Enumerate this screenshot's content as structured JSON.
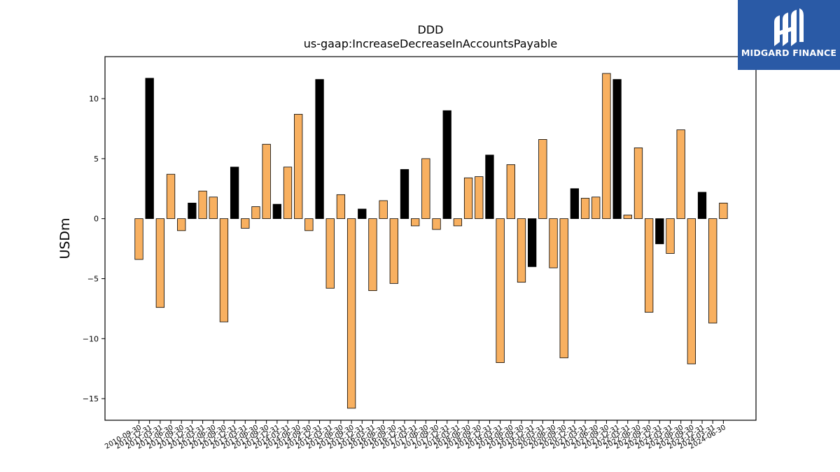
{
  "title": "DDD",
  "subtitle": "us-gaap:IncreaseDecreaseInAccountsPayable",
  "logo": {
    "text": "MIDGARD FINANCE",
    "background": "#2a5aa6"
  },
  "colors": {
    "positive_bar": "#000000",
    "negative_bar": "#f8b060",
    "bar_edge": "#000000"
  },
  "chart_data": {
    "type": "bar",
    "title": "DDD",
    "subtitle": "us-gaap:IncreaseDecreaseInAccountsPayable",
    "xlabel": "",
    "ylabel": "USDm",
    "ylim": [
      -16.8,
      13.5
    ],
    "yticks": [
      -15,
      -10,
      -5,
      0,
      5,
      10
    ],
    "ytick_labels": [
      "−15",
      "−10",
      "−5",
      "0",
      "5",
      "10"
    ],
    "grid": false,
    "legend": "none",
    "categories": [
      "2010-09-30",
      "2010-12-31",
      "2011-03-31",
      "2011-06-30",
      "2011-09-30",
      "2011-12-31",
      "2012-03-31",
      "2012-06-30",
      "2012-09-30",
      "2012-12-31",
      "2013-03-31",
      "2013-06-30",
      "2013-09-30",
      "2013-12-31",
      "2014-03-31",
      "2014-06-30",
      "2014-09-30",
      "2014-12-31",
      "2015-03-31",
      "2015-06-30",
      "2015-09-30",
      "2015-12-31",
      "2016-03-31",
      "2016-06-30",
      "2016-09-30",
      "2016-12-31",
      "2017-03-31",
      "2017-06-30",
      "2017-09-30",
      "2017-12-31",
      "2018-03-31",
      "2018-06-30",
      "2018-09-30",
      "2018-12-31",
      "2019-03-31",
      "2019-06-30",
      "2019-09-30",
      "2019-12-31",
      "2020-03-31",
      "2020-06-30",
      "2020-09-30",
      "2020-12-31",
      "2021-03-31",
      "2021-06-30",
      "2021-09-30",
      "2021-12-31",
      "2022-03-31",
      "2022-06-30",
      "2022-09-30",
      "2022-12-31",
      "2023-03-31",
      "2023-06-30",
      "2023-09-30",
      "2023-12-31",
      "2024-03-31",
      "2024-06-30"
    ],
    "values": [
      -3.4,
      11.7,
      -7.4,
      3.7,
      -1.0,
      1.3,
      2.3,
      1.8,
      -8.6,
      4.3,
      -0.8,
      1.0,
      6.2,
      1.2,
      4.3,
      8.7,
      -1.0,
      11.6,
      -5.8,
      2.0,
      -15.8,
      0.8,
      -6.0,
      1.5,
      -5.4,
      4.1,
      -0.6,
      5.0,
      -0.9,
      9.0,
      -0.6,
      3.4,
      3.5,
      5.3,
      -12.0,
      4.5,
      -5.3,
      -4.0,
      6.6,
      -4.1,
      -11.6,
      2.5,
      1.7,
      1.8,
      12.1,
      11.6,
      0.3,
      5.9,
      -7.8,
      -2.1,
      -2.9,
      7.4,
      -12.1,
      2.2,
      -8.7,
      1.3
    ],
    "bar_colors": [
      "orange",
      "black",
      "orange",
      "orange",
      "orange",
      "black",
      "orange",
      "orange",
      "orange",
      "black",
      "orange",
      "orange",
      "orange",
      "black",
      "orange",
      "orange",
      "orange",
      "black",
      "orange",
      "orange",
      "orange",
      "black",
      "orange",
      "orange",
      "orange",
      "black",
      "orange",
      "orange",
      "orange",
      "black",
      "orange",
      "orange",
      "orange",
      "black",
      "orange",
      "orange",
      "orange",
      "black",
      "orange",
      "orange",
      "orange",
      "black",
      "orange",
      "orange",
      "orange",
      "black",
      "orange",
      "orange",
      "orange",
      "black",
      "orange",
      "orange",
      "orange",
      "black",
      "orange",
      "orange"
    ]
  }
}
